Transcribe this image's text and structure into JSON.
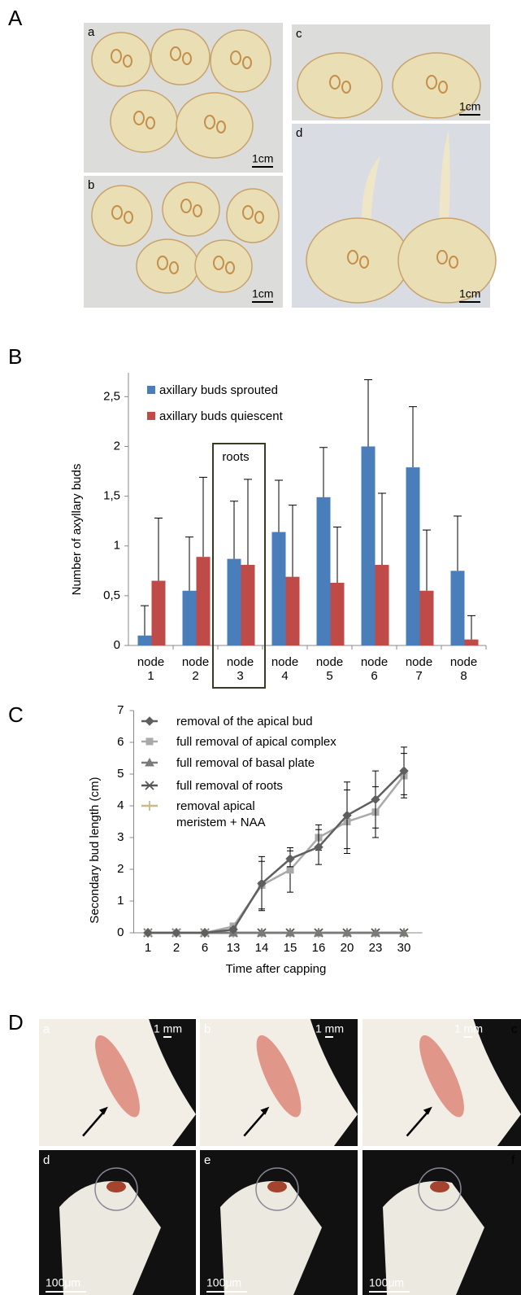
{
  "figure": {
    "labels": [
      "A",
      "B",
      "C",
      "D"
    ],
    "panel_a": [
      {
        "label": "a",
        "scale": "1cm"
      },
      {
        "label": "b",
        "scale": "1cm"
      },
      {
        "label": "c",
        "scale": "1cm"
      },
      {
        "label": "d",
        "scale": "1cm"
      }
    ],
    "panel_d": [
      {
        "label": "a",
        "scale": "1 mm"
      },
      {
        "label": "b",
        "scale": "1 mm"
      },
      {
        "label": "c",
        "scale": "1 mm"
      },
      {
        "label": "d",
        "scale": "100μm"
      },
      {
        "label": "e",
        "scale": "100μm"
      },
      {
        "label": "f",
        "scale": "100μm"
      }
    ]
  },
  "chart_data": [
    {
      "type": "bar",
      "ylabel": "Number of axyllary buds",
      "annotation": "roots",
      "categories": [
        "node 1",
        "node 2",
        "node 3",
        "node 4",
        "node 5",
        "node 6",
        "node 7",
        "node 8"
      ],
      "series": [
        {
          "name": "axillary buds sprouted",
          "color": "#4a7ebb",
          "values": [
            0.1,
            0.55,
            0.87,
            1.14,
            1.49,
            2.0,
            1.79,
            0.75
          ],
          "errors": [
            0.3,
            0.54,
            0.58,
            0.52,
            0.5,
            0.67,
            0.61,
            0.55
          ]
        },
        {
          "name": "axillary buds quiescent",
          "color": "#be4b48",
          "values": [
            0.65,
            0.89,
            0.81,
            0.69,
            0.63,
            0.81,
            0.55,
            0.06
          ],
          "errors": [
            0.63,
            0.8,
            0.86,
            0.72,
            0.56,
            0.72,
            0.61,
            0.24
          ]
        }
      ],
      "ylim": [
        0,
        2.74
      ],
      "yticks": [
        0,
        {
          "value": 0.5,
          "label": "0,5"
        },
        1,
        {
          "value": 1.5,
          "label": "1,5"
        },
        2,
        {
          "value": 2.5,
          "label": "2,5"
        }
      ]
    },
    {
      "type": "line",
      "ylabel": "Secondary bud length (cm)",
      "xlabel": "Time after capping",
      "categories": [
        "1",
        "2",
        "6",
        "13",
        "14",
        "15",
        "16",
        "20",
        "23",
        "30"
      ],
      "series": [
        {
          "name": "removal of the apical bud",
          "color": "#5f5f5f",
          "marker": "diamond",
          "values": [
            0,
            0,
            0,
            0.1,
            1.55,
            2.33,
            2.7,
            3.7,
            4.2,
            5.1
          ],
          "errors": [
            0,
            0,
            0,
            0.05,
            0.85,
            0.25,
            0.55,
            1.05,
            0.9,
            0.75
          ]
        },
        {
          "name": "full removal of  apical complex",
          "color": "#a9a9a9",
          "marker": "square",
          "values": [
            0,
            0,
            0,
            0.2,
            1.5,
            1.98,
            3.0,
            3.5,
            3.8,
            4.95
          ],
          "errors": [
            0,
            0,
            0,
            0.1,
            0.75,
            0.7,
            0.4,
            1.0,
            0.8,
            0.7
          ]
        },
        {
          "name": "full removal of  basal plate",
          "color": "#7a7a7a",
          "marker": "triangle",
          "values": [
            0,
            0,
            0,
            0,
            0,
            0,
            0,
            0,
            0,
            0
          ]
        },
        {
          "name": "full removal of roots",
          "color": "#555555",
          "marker": "x",
          "values": [
            0,
            0,
            0,
            0,
            0,
            0,
            0,
            0,
            0,
            0
          ]
        },
        {
          "name": "removal apical meristem + NAA",
          "color": "#c8b88a",
          "marker": "plus",
          "values": [
            0,
            0,
            0,
            0,
            0,
            0,
            0,
            0,
            0,
            0
          ]
        }
      ],
      "ylim": [
        0,
        7
      ],
      "yticks": [
        0,
        1,
        2,
        3,
        4,
        5,
        6,
        7
      ]
    }
  ]
}
